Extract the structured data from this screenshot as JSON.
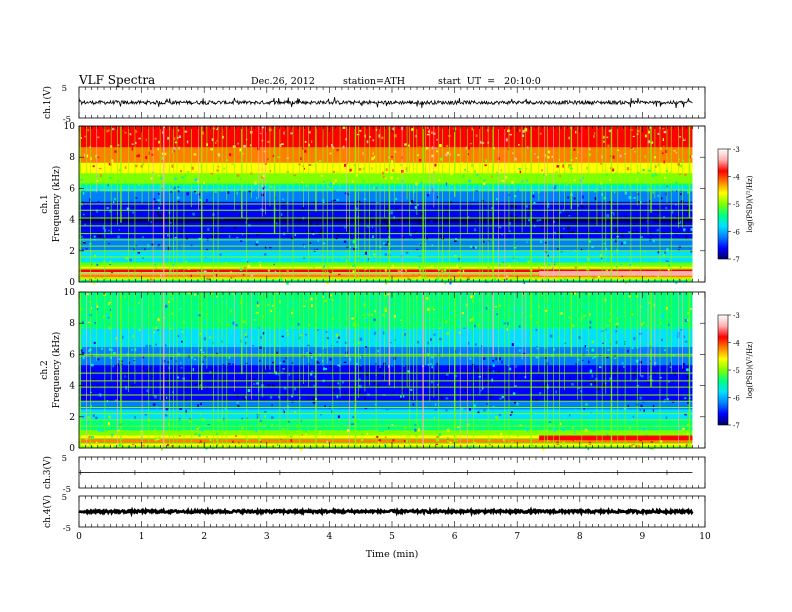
{
  "header": {
    "title": "VLF  Spectra",
    "date": "Dec.26, 2012",
    "station": "station=ATH",
    "start": "start  UT  =   20:10:0"
  },
  "chart_data": {
    "type": "heatmap",
    "x_axis": {
      "label": "Time  (min)",
      "range": [
        0,
        10
      ],
      "ticks": [
        0,
        1,
        2,
        3,
        4,
        5,
        6,
        7,
        8,
        9,
        10
      ],
      "tick_labels": [
        "0",
        "1",
        "2",
        "3",
        "4",
        "5",
        "6",
        "7",
        "8",
        "9",
        "10"
      ],
      "data_end_min": 9.8
    },
    "panels": [
      {
        "id": "ch1-waveform",
        "type": "line",
        "ylabel": "ch.1(V)",
        "ylim": [
          -5,
          5
        ],
        "tick_labels": [
          "5",
          "-5"
        ],
        "baseline_v": 0,
        "noise_band_v": [
          -0.6,
          0.6
        ],
        "spike_v": 1.8
      },
      {
        "id": "ch1-spectrogram",
        "type": "heatmap",
        "ylabel_top": "ch.1",
        "ylabel": "Frequency  (kHz)",
        "ylim": [
          0,
          10
        ],
        "ticks": [
          0,
          2,
          4,
          6,
          8,
          10
        ],
        "tick_labels": [
          "0",
          "2",
          "4",
          "6",
          "8",
          "10"
        ],
        "colorbar": {
          "label": "log(PSD)(V²/Hz)",
          "range": [
            -7,
            -3
          ],
          "ticks": [
            -3,
            -4,
            -5,
            -6,
            -7
          ],
          "tick_labels": [
            "-3",
            "-4",
            "-5",
            "-6",
            "-7"
          ]
        },
        "profile": [
          {
            "f_khz": 0.0,
            "level": -5.4
          },
          {
            "f_khz": 0.6,
            "level": -3.3
          },
          {
            "f_khz": 1.2,
            "level": -5.3
          },
          {
            "f_khz": 2.0,
            "level": -5.8
          },
          {
            "f_khz": 3.0,
            "level": -6.3
          },
          {
            "f_khz": 4.0,
            "level": -6.7
          },
          {
            "f_khz": 5.0,
            "level": -6.3
          },
          {
            "f_khz": 5.8,
            "level": -5.9
          },
          {
            "f_khz": 6.4,
            "level": -5.0
          },
          {
            "f_khz": 7.2,
            "level": -4.4
          },
          {
            "f_khz": 8.2,
            "level": -3.9
          },
          {
            "f_khz": 10.0,
            "level": -3.5
          }
        ],
        "lines_khz": [
          0.25,
          0.55,
          0.85,
          1.2,
          1.6,
          2.0,
          2.3,
          2.7,
          3.1,
          3.6,
          4.1,
          4.6,
          5.0,
          5.9
        ],
        "strong_band": {
          "t_min": [
            7.35,
            9.8
          ],
          "f_khz": [
            0.4,
            0.7
          ],
          "level": -3.0
        }
      },
      {
        "id": "ch2-spectrogram",
        "type": "heatmap",
        "ylabel_top": "ch.2",
        "ylabel": "Frequency  (kHz)",
        "ylim": [
          0,
          10
        ],
        "ticks": [
          0,
          2,
          4,
          6,
          8,
          10
        ],
        "tick_labels": [
          "0",
          "2",
          "4",
          "6",
          "8",
          "10"
        ],
        "colorbar": {
          "label": "log(PSD)(V²/Hz)",
          "range": [
            -7,
            -3
          ],
          "ticks": [
            -3,
            -4,
            -5,
            -6,
            -7
          ],
          "tick_labels": [
            "-3",
            "-4",
            "-5",
            "-6",
            "-7"
          ]
        },
        "profile": [
          {
            "f_khz": 0.0,
            "level": -5.0
          },
          {
            "f_khz": 0.5,
            "level": -4.0
          },
          {
            "f_khz": 1.0,
            "level": -4.9
          },
          {
            "f_khz": 2.0,
            "level": -5.5
          },
          {
            "f_khz": 3.0,
            "level": -6.2
          },
          {
            "f_khz": 4.0,
            "level": -6.6
          },
          {
            "f_khz": 5.0,
            "level": -6.3
          },
          {
            "f_khz": 6.0,
            "level": -6.0
          },
          {
            "f_khz": 7.0,
            "level": -5.6
          },
          {
            "f_khz": 8.5,
            "level": -5.1
          },
          {
            "f_khz": 10.0,
            "level": -5.0
          }
        ],
        "lines_khz": [
          0.3,
          0.6,
          1.0,
          1.4,
          1.8,
          2.2,
          2.6,
          3.0,
          3.4,
          3.9,
          4.3,
          4.8,
          5.9,
          6.0
        ],
        "strong_band": {
          "t_min": [
            7.35,
            9.8
          ],
          "f_khz": [
            0.5,
            0.8
          ],
          "level": -3.8
        }
      },
      {
        "id": "ch3-waveform",
        "type": "line",
        "ylabel": "ch.3(V)",
        "ylim": [
          -5,
          5
        ],
        "tick_labels": [
          "5",
          "-5"
        ],
        "baseline_v": 0,
        "noise_band_v": [
          -0.05,
          0.05
        ]
      },
      {
        "id": "ch4-waveform",
        "type": "line",
        "ylabel": "ch.4(V)",
        "ylim": [
          -5,
          5
        ],
        "tick_labels": [
          "5",
          "-5"
        ],
        "baseline_v": 0,
        "noise_band_v": [
          -0.4,
          0.4
        ]
      }
    ],
    "colormap": [
      "#000066",
      "#0000ff",
      "#0080ff",
      "#00e0ff",
      "#00ff80",
      "#80ff00",
      "#ffff00",
      "#ff8000",
      "#ff0000",
      "#ffb0b0",
      "#ffffff"
    ]
  }
}
